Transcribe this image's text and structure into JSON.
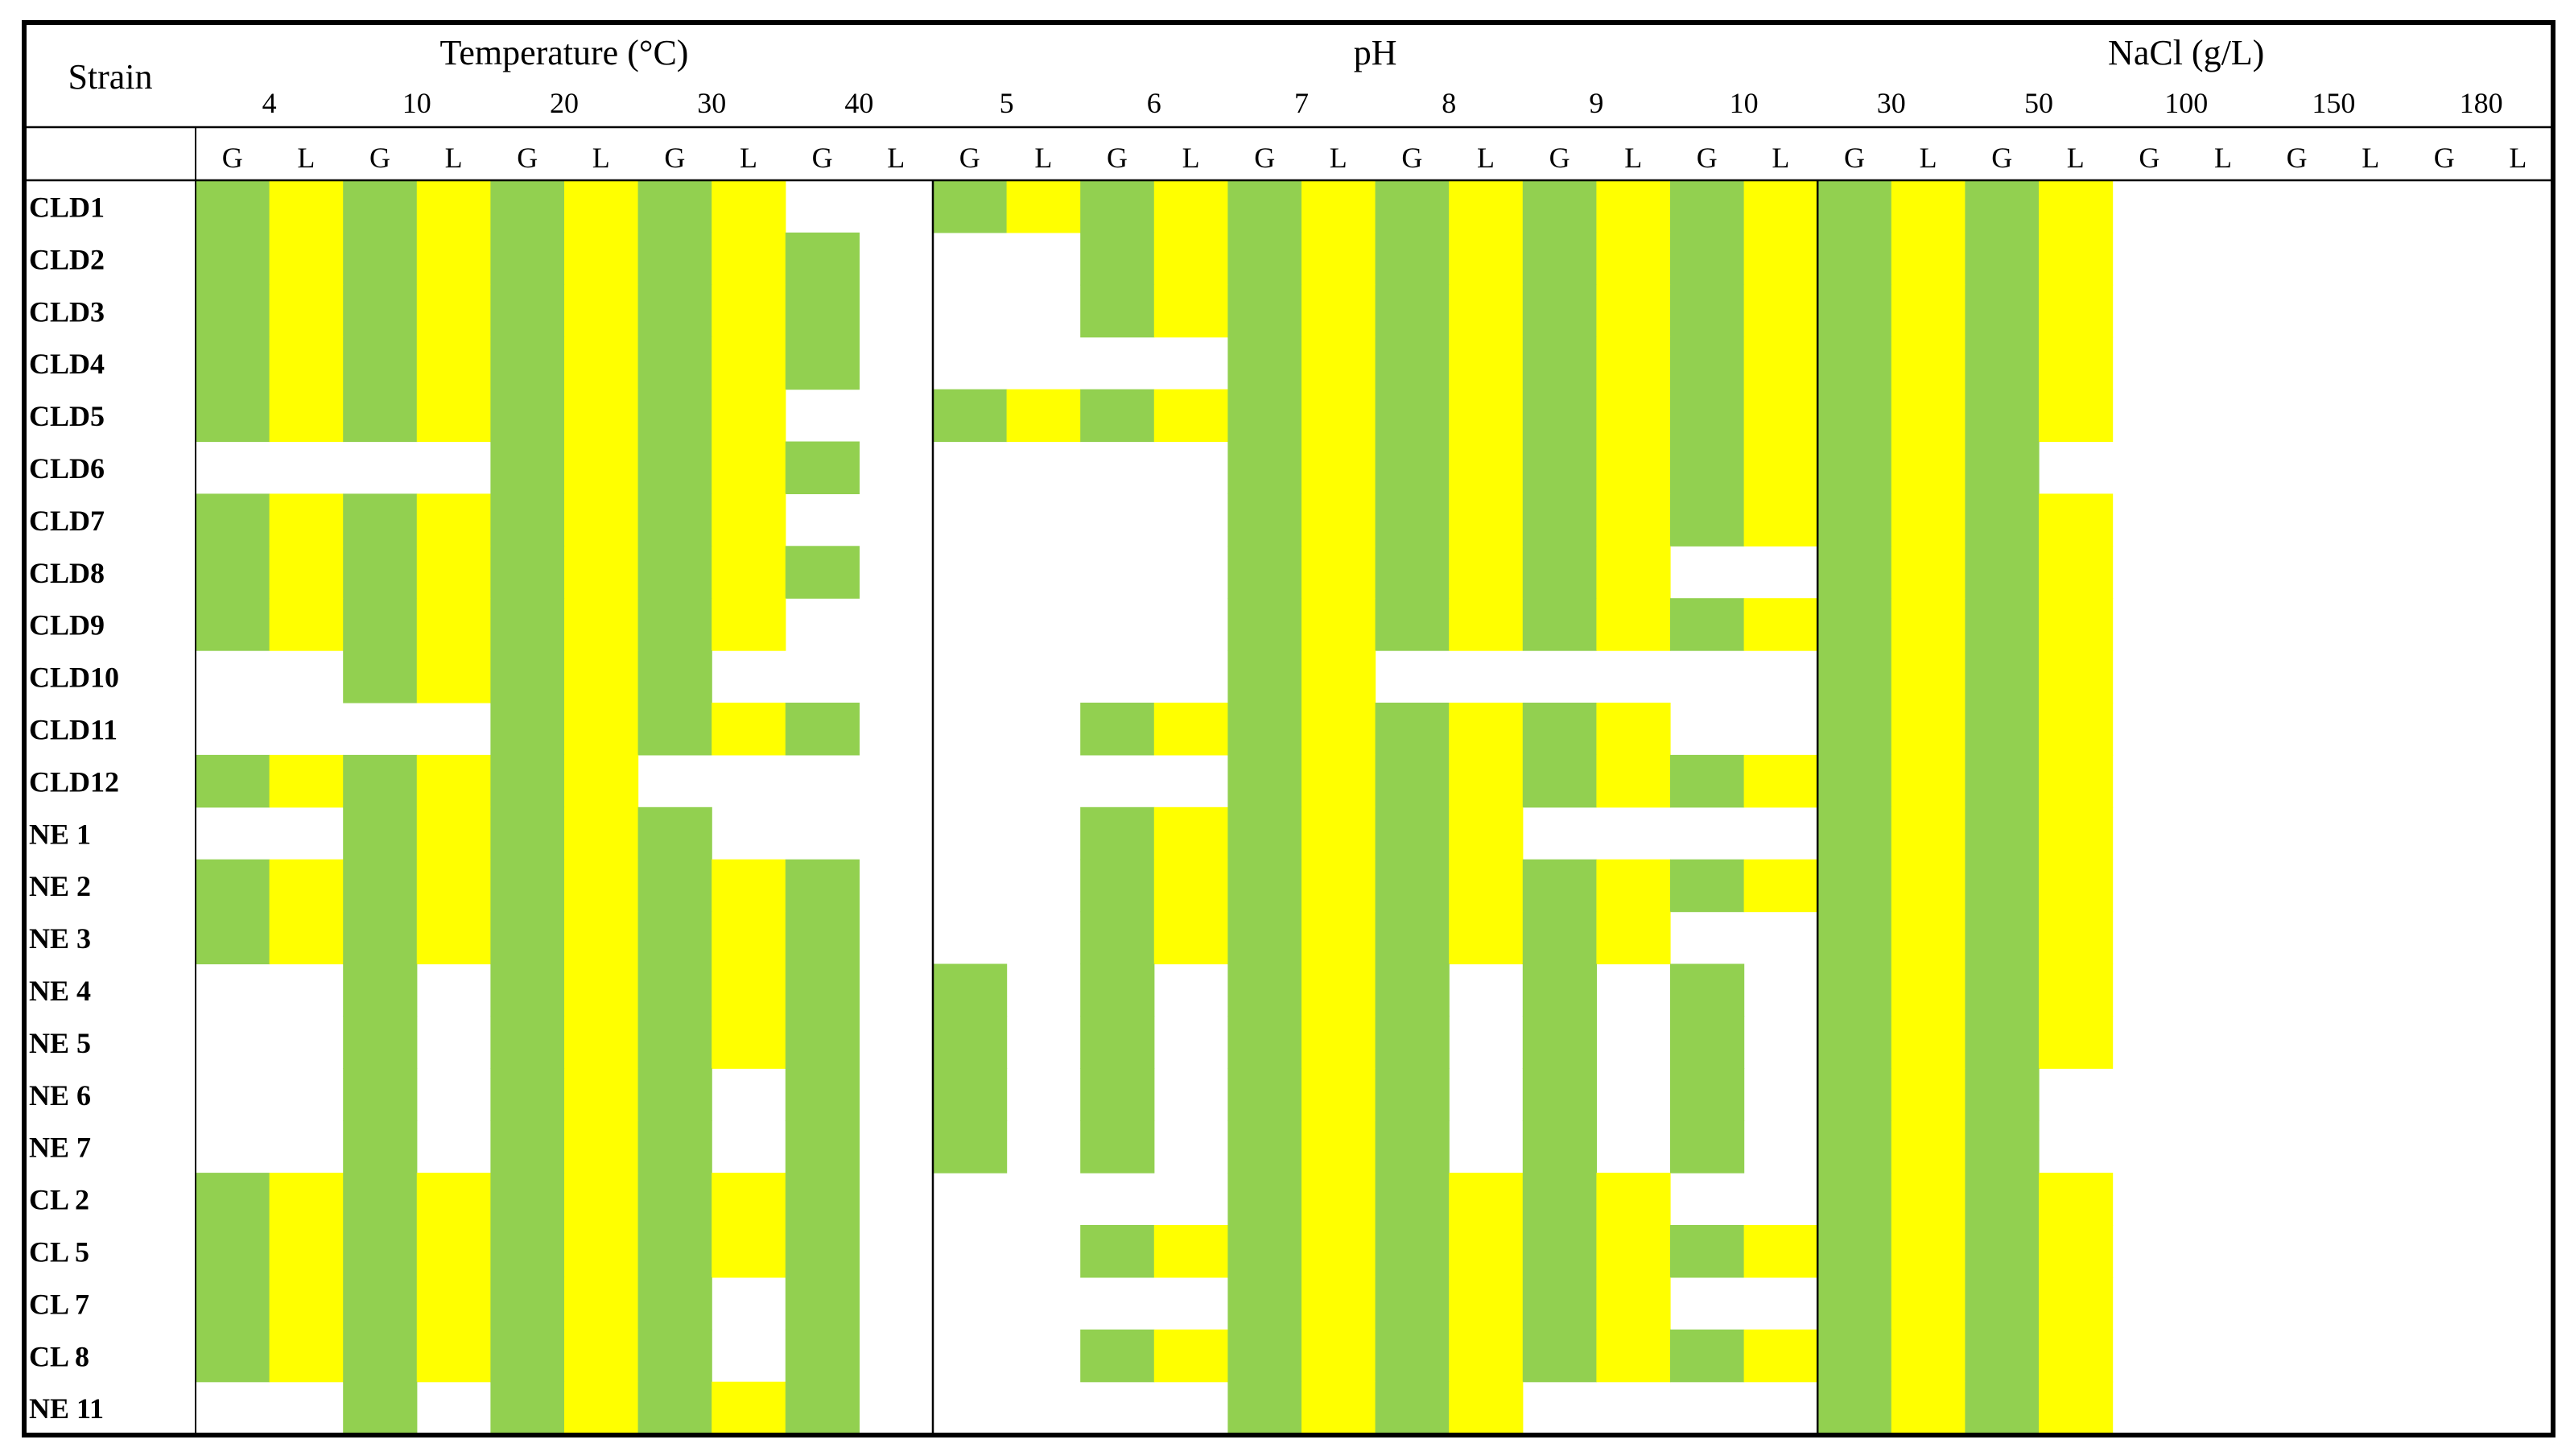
{
  "chart_data": {
    "type": "heatmap",
    "corner_label": "Strain",
    "groups": [
      {
        "label": "Temperature (°C)",
        "levels": [
          "4",
          "10",
          "20",
          "30",
          "40"
        ]
      },
      {
        "label": "pH",
        "levels": [
          "5",
          "6",
          "7",
          "8",
          "9",
          "10"
        ]
      },
      {
        "label": "NaCl (g/L)",
        "levels": [
          "30",
          "50",
          "100",
          "150",
          "180"
        ]
      }
    ],
    "sub_columns": [
      "G",
      "L"
    ],
    "colors": {
      "G": "#92d050",
      "L": "#ffff00",
      "none": "#ffffff",
      "border": "#000000"
    },
    "rows": [
      {
        "strain": "CLD1",
        "cells": [
          "GL",
          "GL",
          "GL",
          "GL",
          "--",
          "GL",
          "GL",
          "GL",
          "GL",
          "GL",
          "GL",
          "GL",
          "GL",
          "--",
          "--",
          "--"
        ]
      },
      {
        "strain": "CLD2",
        "cells": [
          "GL",
          "GL",
          "GL",
          "GL",
          "G-",
          "--",
          "GL",
          "GL",
          "GL",
          "GL",
          "GL",
          "GL",
          "GL",
          "--",
          "--",
          "--"
        ]
      },
      {
        "strain": "CLD3",
        "cells": [
          "GL",
          "GL",
          "GL",
          "GL",
          "G-",
          "--",
          "GL",
          "GL",
          "GL",
          "GL",
          "GL",
          "GL",
          "GL",
          "--",
          "--",
          "--"
        ]
      },
      {
        "strain": "CLD4",
        "cells": [
          "GL",
          "GL",
          "GL",
          "GL",
          "G-",
          "--",
          "--",
          "GL",
          "GL",
          "GL",
          "GL",
          "GL",
          "GL",
          "--",
          "--",
          "--"
        ]
      },
      {
        "strain": "CLD5",
        "cells": [
          "GL",
          "GL",
          "GL",
          "GL",
          "--",
          "GL",
          "GL",
          "GL",
          "GL",
          "GL",
          "GL",
          "GL",
          "GL",
          "--",
          "--",
          "--"
        ]
      },
      {
        "strain": "CLD6",
        "cells": [
          "--",
          "--",
          "GL",
          "GL",
          "G-",
          "--",
          "--",
          "GL",
          "GL",
          "GL",
          "GL",
          "GL",
          "G-",
          "--",
          "--",
          "--"
        ]
      },
      {
        "strain": "CLD7",
        "cells": [
          "GL",
          "GL",
          "GL",
          "GL",
          "--",
          "--",
          "--",
          "GL",
          "GL",
          "GL",
          "GL",
          "GL",
          "GL",
          "--",
          "--",
          "--"
        ]
      },
      {
        "strain": "CLD8",
        "cells": [
          "GL",
          "GL",
          "GL",
          "GL",
          "G-",
          "--",
          "--",
          "GL",
          "GL",
          "GL",
          "--",
          "GL",
          "GL",
          "--",
          "--",
          "--"
        ]
      },
      {
        "strain": "CLD9",
        "cells": [
          "GL",
          "GL",
          "GL",
          "GL",
          "--",
          "--",
          "--",
          "GL",
          "GL",
          "GL",
          "GL",
          "GL",
          "GL",
          "--",
          "--",
          "--"
        ]
      },
      {
        "strain": "CLD10",
        "cells": [
          "--",
          "GL",
          "GL",
          "G-",
          "--",
          "--",
          "--",
          "GL",
          "--",
          "--",
          "--",
          "GL",
          "GL",
          "--",
          "--",
          "--"
        ]
      },
      {
        "strain": "CLD11",
        "cells": [
          "--",
          "--",
          "GL",
          "GL",
          "G-",
          "--",
          "GL",
          "GL",
          "GL",
          "GL",
          "--",
          "GL",
          "GL",
          "--",
          "--",
          "--"
        ]
      },
      {
        "strain": "CLD12",
        "cells": [
          "GL",
          "GL",
          "GL",
          "--",
          "--",
          "--",
          "--",
          "GL",
          "GL",
          "GL",
          "GL",
          "GL",
          "GL",
          "--",
          "--",
          "--"
        ]
      },
      {
        "strain": "NE 1",
        "cells": [
          "--",
          "GL",
          "GL",
          "G-",
          "--",
          "--",
          "GL",
          "GL",
          "GL",
          "--",
          "--",
          "GL",
          "GL",
          "--",
          "--",
          "--"
        ]
      },
      {
        "strain": "NE 2",
        "cells": [
          "GL",
          "GL",
          "GL",
          "GL",
          "G-",
          "--",
          "GL",
          "GL",
          "GL",
          "GL",
          "GL",
          "GL",
          "GL",
          "--",
          "--",
          "--"
        ]
      },
      {
        "strain": "NE 3",
        "cells": [
          "GL",
          "GL",
          "GL",
          "GL",
          "G-",
          "--",
          "GL",
          "GL",
          "GL",
          "GL",
          "--",
          "GL",
          "GL",
          "--",
          "--",
          "--"
        ]
      },
      {
        "strain": "NE 4",
        "cells": [
          "--",
          "G-",
          "GL",
          "GL",
          "G-",
          "G-",
          "G-",
          "GL",
          "G-",
          "G-",
          "G-",
          "GL",
          "GL",
          "--",
          "--",
          "--"
        ]
      },
      {
        "strain": "NE 5",
        "cells": [
          "--",
          "G-",
          "GL",
          "GL",
          "G-",
          "G-",
          "G-",
          "GL",
          "G-",
          "G-",
          "G-",
          "GL",
          "GL",
          "--",
          "--",
          "--"
        ]
      },
      {
        "strain": "NE 6",
        "cells": [
          "--",
          "G-",
          "GL",
          "G-",
          "G-",
          "G-",
          "G-",
          "GL",
          "G-",
          "G-",
          "G-",
          "GL",
          "G-",
          "--",
          "--",
          "--"
        ]
      },
      {
        "strain": "NE 7",
        "cells": [
          "--",
          "G-",
          "GL",
          "G-",
          "G-",
          "G-",
          "G-",
          "GL",
          "G-",
          "G-",
          "G-",
          "GL",
          "G-",
          "--",
          "--",
          "--"
        ]
      },
      {
        "strain": "CL 2",
        "cells": [
          "GL",
          "GL",
          "GL",
          "GL",
          "G-",
          "--",
          "--",
          "GL",
          "GL",
          "GL",
          "--",
          "GL",
          "GL",
          "--",
          "--",
          "--"
        ]
      },
      {
        "strain": "CL 5",
        "cells": [
          "GL",
          "GL",
          "GL",
          "GL",
          "G-",
          "--",
          "GL",
          "GL",
          "GL",
          "GL",
          "GL",
          "GL",
          "GL",
          "--",
          "--",
          "--"
        ]
      },
      {
        "strain": "CL 7",
        "cells": [
          "GL",
          "GL",
          "GL",
          "G-",
          "G-",
          "--",
          "--",
          "GL",
          "GL",
          "GL",
          "--",
          "GL",
          "GL",
          "--",
          "--",
          "--"
        ]
      },
      {
        "strain": "CL 8",
        "cells": [
          "GL",
          "GL",
          "GL",
          "G-",
          "G-",
          "--",
          "GL",
          "GL",
          "GL",
          "GL",
          "GL",
          "GL",
          "GL",
          "--",
          "--",
          "--"
        ]
      },
      {
        "strain": "NE 11",
        "cells": [
          "--",
          "G-",
          "GL",
          "GL",
          "G-",
          "--",
          "--",
          "GL",
          "GL",
          "--",
          "--",
          "GL",
          "GL",
          "--",
          "--",
          "--"
        ]
      }
    ]
  }
}
